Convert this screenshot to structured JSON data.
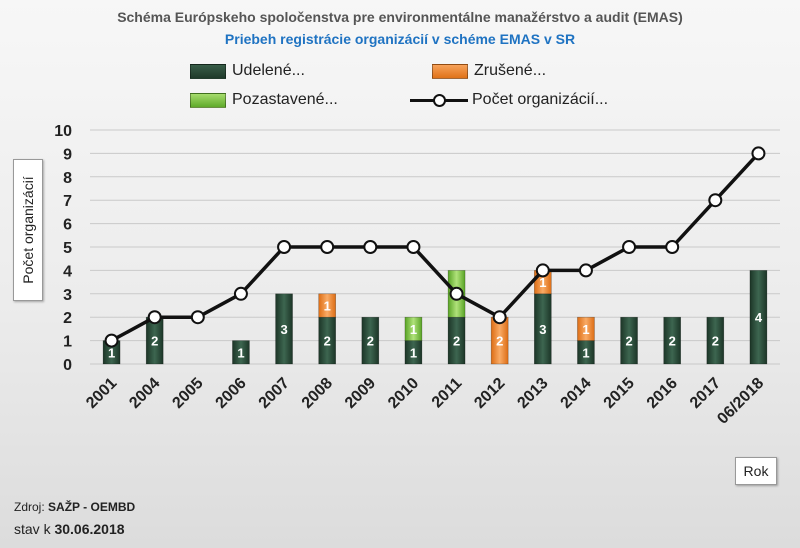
{
  "title": "Schéma Európskeho spoločenstva pre environmentálne manažérstvo a audit (EMAS)",
  "subtitle": "Priebeh registrácie organizácií v schéme EMAS v SR",
  "legend": {
    "granted": "Udelené...",
    "cancelled": "Zrušené...",
    "suspended": "Pozastavené...",
    "count": "Počet organizácií..."
  },
  "source_label": "Zdroj:",
  "source_value": "SAŽP - OEMBD",
  "asof_label": "stav k",
  "asof_value": "30.06.2018",
  "colors": {
    "granted": "#2b4a38",
    "cancelled": "#ee8a32",
    "suspended": "#7cc444",
    "line": "#111111"
  },
  "chart_data": {
    "type": "bar",
    "title": "Schéma Európskeho spoločenstva pre environmentálne manažérstvo a audit (EMAS)",
    "subtitle": "Priebeh registrácie organizácií v schéme EMAS v SR",
    "xlabel": "Rok",
    "ylabel": "Počet organizácií",
    "ylim": [
      0,
      10
    ],
    "yticks": [
      0,
      1,
      2,
      3,
      4,
      5,
      6,
      7,
      8,
      9,
      10
    ],
    "grid": true,
    "legend_position": "top",
    "categories": [
      "2001",
      "2004",
      "2005",
      "2006",
      "2007",
      "2008",
      "2009",
      "2010",
      "2011",
      "2012",
      "2013",
      "2014",
      "2015",
      "2016",
      "2017",
      "06/2018"
    ],
    "series": [
      {
        "name": "Udelené...",
        "kind": "stacked-bar",
        "values": [
          1,
          2,
          0,
          1,
          3,
          2,
          2,
          1,
          2,
          0,
          3,
          1,
          2,
          2,
          2,
          4
        ]
      },
      {
        "name": "Zrušené...",
        "kind": "stacked-bar",
        "values": [
          0,
          0,
          0,
          0,
          0,
          1,
          0,
          0,
          0,
          2,
          1,
          1,
          0,
          0,
          0,
          0
        ]
      },
      {
        "name": "Pozastavené...",
        "kind": "stacked-bar",
        "values": [
          0,
          0,
          0,
          0,
          0,
          0,
          0,
          1,
          2,
          0,
          0,
          0,
          0,
          0,
          0,
          0
        ]
      },
      {
        "name": "Počet organizácií...",
        "kind": "line",
        "values": [
          1,
          2,
          2,
          3,
          5,
          5,
          5,
          5,
          3,
          2,
          4,
          4,
          5,
          5,
          7,
          9
        ]
      }
    ]
  }
}
